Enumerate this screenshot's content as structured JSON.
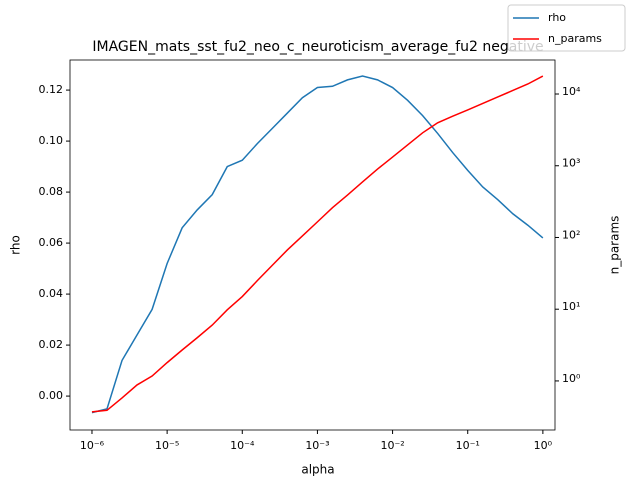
{
  "chart_data": {
    "type": "line",
    "title": "IMAGEN_mats_sst_fu2_neo_c_neuroticism_average_fu2 negative",
    "x_label": "alpha",
    "y_label": "rho",
    "y2_label": "n_params",
    "xscale": "log",
    "y2scale": "log",
    "legend": "upper right",
    "x": [
      1e-06,
      1.585e-06,
      2.512e-06,
      3.981e-06,
      6.31e-06,
      1e-05,
      1.585e-05,
      2.512e-05,
      3.981e-05,
      6.31e-05,
      0.0001,
      0.0001585,
      0.0002512,
      0.0003981,
      0.000631,
      0.001,
      0.001585,
      0.002512,
      0.003981,
      0.00631,
      0.01,
      0.01585,
      0.02512,
      0.03981,
      0.0631,
      0.1,
      0.1585,
      0.2512,
      0.3981,
      0.631,
      1
    ],
    "series": [
      {
        "name": "rho",
        "color": "#1f77b4",
        "axis": "y",
        "values": [
          -0.0065,
          -0.005,
          0.014,
          0.024,
          0.034,
          0.052,
          0.066,
          0.073,
          0.079,
          0.09,
          0.0925,
          0.099,
          0.105,
          0.111,
          0.117,
          0.121,
          0.1215,
          0.124,
          0.1255,
          0.124,
          0.121,
          0.116,
          0.11,
          0.103,
          0.0955,
          0.0885,
          0.082,
          0.077,
          0.0715,
          0.067,
          0.062
        ]
      },
      {
        "name": "n_params",
        "color": "#ff0000",
        "axis": "y2",
        "values": [
          0.37,
          0.39,
          0.58,
          0.88,
          1.17,
          1.8,
          2.7,
          4,
          6,
          9.8,
          15,
          25,
          41,
          67,
          105,
          165,
          260,
          390,
          595,
          900,
          1320,
          1950,
          2880,
          3970,
          4900,
          6000,
          7400,
          9100,
          11200,
          13800,
          17800
        ]
      }
    ],
    "xlim": [
      5.1e-07,
      1.45
    ],
    "xticks": [
      {
        "value": 1e-06,
        "label": "10⁻⁶"
      },
      {
        "value": 1e-05,
        "label": "10⁻⁵"
      },
      {
        "value": 0.0001,
        "label": "10⁻⁴"
      },
      {
        "value": 0.001,
        "label": "10⁻³"
      },
      {
        "value": 0.01,
        "label": "10⁻²"
      },
      {
        "value": 0.1,
        "label": "10⁻¹"
      },
      {
        "value": 1,
        "label": "10⁰"
      }
    ],
    "ylim": [
      -0.0133,
      0.1318
    ],
    "yticks": [
      {
        "value": 0,
        "label": "0.00"
      },
      0.02,
      0.04,
      0.06,
      0.08,
      {
        "value": 0.1,
        "label": "0.10"
      },
      0.12
    ],
    "y2lim": [
      0.207,
      29800
    ],
    "y2ticks": [
      {
        "value": 1,
        "label": "10⁰"
      },
      {
        "value": 10,
        "label": "10¹"
      },
      {
        "value": 100,
        "label": "10²"
      },
      {
        "value": 1000,
        "label": "10³"
      },
      {
        "value": 10000,
        "label": "10⁴"
      }
    ]
  }
}
